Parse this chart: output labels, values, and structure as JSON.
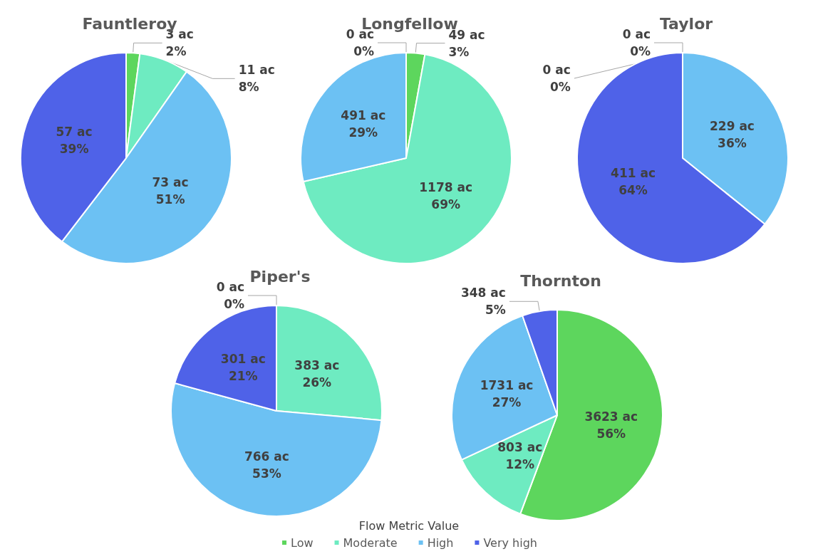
{
  "chart_data": [
    {
      "type": "pie",
      "title": "Fauntleroy",
      "categories": [
        null,
        null,
        null,
        null
      ],
      "values": [
        3,
        11,
        73,
        57
      ],
      "colors": [
        "#5dd65d",
        "#6eebc1",
        "#6cc1f3",
        "#4f62e8"
      ],
      "value_labels": [
        "3 ac\n2%",
        "11 ac\n8%",
        "73 ac\n51%",
        "57 ac\n39%"
      ]
    },
    {
      "type": "pie",
      "title": "Longfellow",
      "categories": [
        null,
        null,
        null,
        null
      ],
      "values": [
        49,
        1178,
        491,
        0
      ],
      "colors": [
        "#5dd65d",
        "#6eebc1",
        "#6cc1f3",
        "#4f62e8"
      ],
      "value_labels": [
        "49 ac\n3%",
        "1178 ac\n69%",
        "491 ac\n29%",
        "0 ac\n0%"
      ]
    },
    {
      "type": "pie",
      "title": "Taylor",
      "categories": [
        null,
        null,
        null,
        null
      ],
      "values": [
        0,
        0,
        229,
        411
      ],
      "colors": [
        "#5dd65d",
        "#6eebc1",
        "#6cc1f3",
        "#4f62e8"
      ],
      "value_labels": [
        "0 ac\n0%",
        "0 ac\n0%",
        "229 ac\n36%",
        "411 ac\n64%"
      ]
    },
    {
      "type": "pie",
      "title": "Piper's",
      "categories": [
        null,
        null,
        null,
        null
      ],
      "values": [
        0,
        383,
        766,
        301
      ],
      "colors": [
        "#5dd65d",
        "#6eebc1",
        "#6cc1f3",
        "#4f62e8"
      ],
      "value_labels": [
        "0 ac\n0%",
        "383 ac\n26%",
        "766 ac\n53%",
        "301 ac\n21%"
      ]
    },
    {
      "type": "pie",
      "title": "Thornton",
      "categories": [
        "Low",
        "Moderate",
        "High",
        "Very high"
      ],
      "values": [
        3623,
        803,
        1731,
        348
      ],
      "colors": [
        "#5dd65d",
        "#6eebc1",
        "#6cc1f3",
        "#4f62e8"
      ],
      "value_labels": [
        "3623 ac\n56%",
        "803 ac\n12%",
        "1731 ac\n27%",
        "348 ac\n5%"
      ],
      "legend": "bottom",
      "legend_title": "Flow Metric Value"
    }
  ]
}
